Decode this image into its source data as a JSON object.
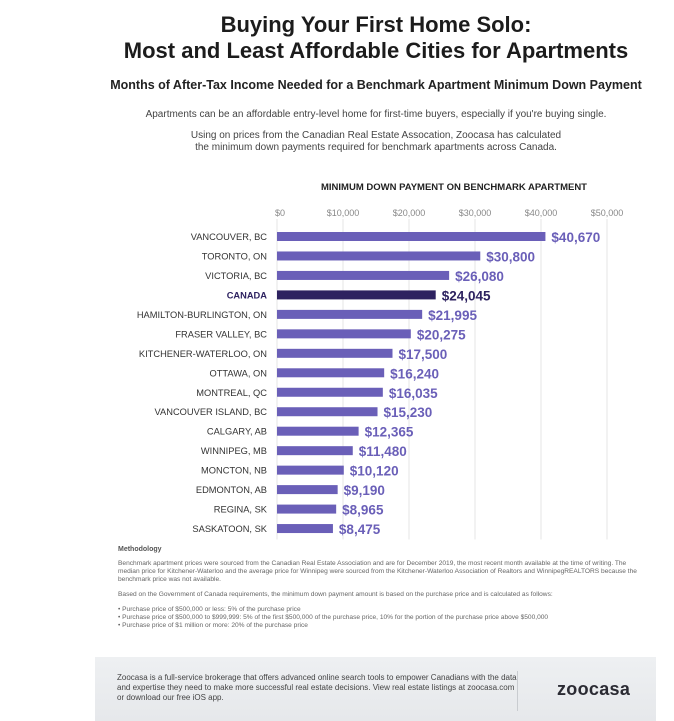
{
  "header": {
    "title_line1": "Buying Your First Home Solo:",
    "title_line2": "Most and Least Affordable Cities for Apartments",
    "subtitle": "Months of After-Tax Income Needed for a Benchmark Apartment Minimum Down Payment",
    "intro1": "Apartments can be an affordable entry-level home for first-time buyers, especially if you're buying single.",
    "intro2_line1": "Using on prices from the Canadian Real Estate Assocation, Zoocasa has calculated",
    "intro2_line2": "the minimum down payments required for benchmark apartments across Canada."
  },
  "chart_data": {
    "type": "bar",
    "orientation": "horizontal",
    "title": "MINIMUM DOWN PAYMENT ON BENCHMARK APARTMENT",
    "xlim": [
      0,
      50000
    ],
    "ticks": [
      "$0",
      "$10,000",
      "$20,000",
      "$30,000",
      "$40,000",
      "$50,000"
    ],
    "tick_values": [
      0,
      10000,
      20000,
      30000,
      40000,
      50000
    ],
    "grid": true,
    "categories": [
      "VANCOUVER, BC",
      "TORONTO, ON",
      "VICTORIA, BC",
      "CANADA",
      "HAMILTON-BURLINGTON, ON",
      "FRASER VALLEY, BC",
      "KITCHENER-WATERLOO, ON",
      "OTTAWA, ON",
      "MONTREAL, QC",
      "VANCOUVER ISLAND, BC",
      "CALGARY, AB",
      "WINNIPEG, MB",
      "MONCTON, NB",
      "EDMONTON, AB",
      "REGINA, SK",
      "SASKATOON, SK"
    ],
    "values": [
      40670,
      30800,
      26080,
      24045,
      21995,
      20275,
      17500,
      16240,
      16035,
      15230,
      12365,
      11480,
      10120,
      9190,
      8965,
      8475
    ],
    "labels": [
      "$40,670",
      "$30,800",
      "$26,080",
      "$24,045",
      "$21,995",
      "$20,275",
      "$17,500",
      "$16,240",
      "$16,035",
      "$15,230",
      "$12,365",
      "$11,480",
      "$10,120",
      "$9,190",
      "$8,965",
      "$8,475"
    ],
    "highlight": "CANADA",
    "colors": {
      "bar": "#6a5fb8",
      "highlight": "#2d2260",
      "label": "#6a5fb8",
      "highlight_label": "#2d2260"
    }
  },
  "methodology": {
    "heading": "Methodology",
    "para1": "Benchmark apartment prices were sourced from the Canadian Real Estate Association and are for December 2019, the most recent month available at the time of writing. The median price for Kitchener-Waterloo and the average price for Winnipeg were sourced from the Kitchener-Waterloo Association of Realtors and WinnipegREALTORS because the benchmark price was not available.",
    "para2": "Based on the Government of Canada requirements, the minimum down payment amount is based on the purchase price and is calculated as follows:",
    "bullets": [
      "• Purchase price of $500,000 or less: 5% of the purchase price",
      "• Purchase price of $500,000 to $999,999: 5% of the first $500,000 of the purchase price, 10% for the portion of the purchase price above $500,000",
      "• Purchase price of $1 million or more: 20% of the purchase price"
    ]
  },
  "footer": {
    "text": "Zoocasa is a full-service brokerage that offers advanced online search tools to empower Canadians with the data and expertise they need to make more successful real estate decisions. View real estate listings at zoocasa.com or download our free iOS app.",
    "logo": "zoocasa"
  }
}
